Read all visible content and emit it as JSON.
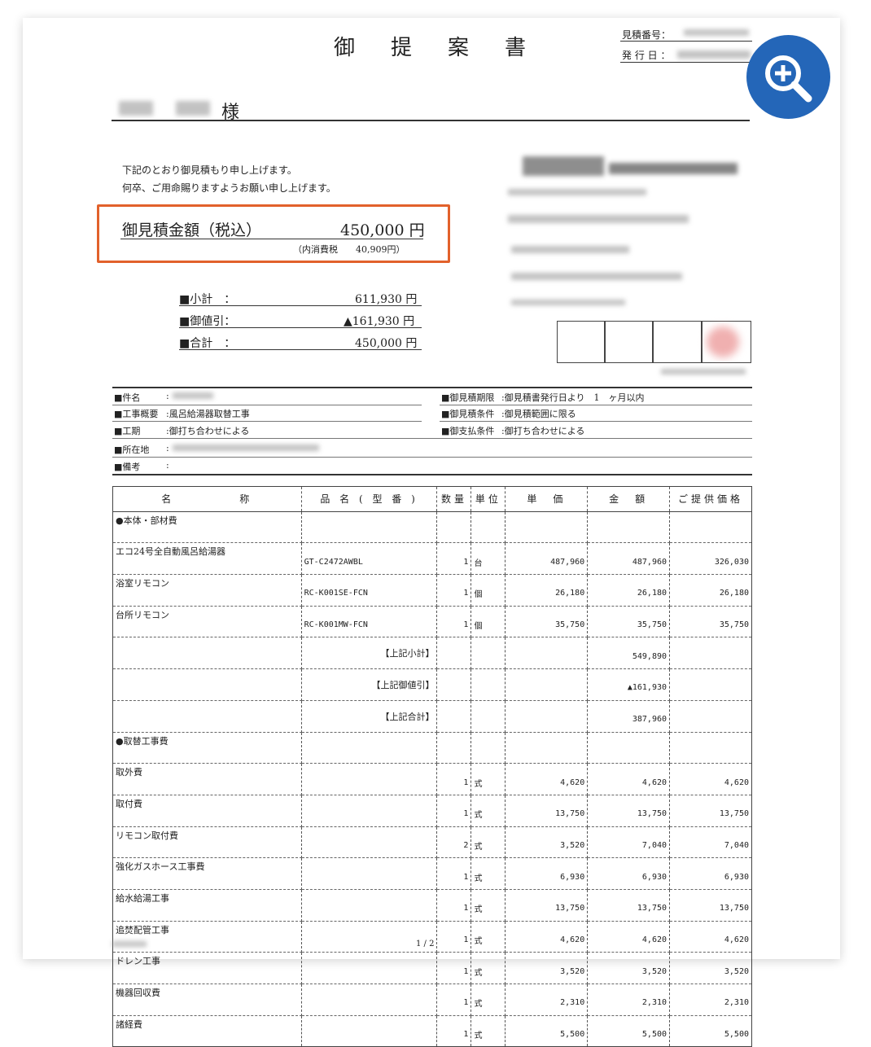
{
  "doc": {
    "title": "御提案書",
    "estimate_no_label": "見積番号：",
    "issue_date_label": "発 行 日 ：",
    "recipient_suffix": "様",
    "greeting1": "下記のとおり御見積もり申し上げます。",
    "greeting2": "何卒、ご用命賜りますようお願い申し上げます。",
    "total_label": "御見積金額（税込）",
    "total_value": "450,000 円",
    "tax_note": "（内消費税　　40,909円）",
    "subtotal_label": "■小計　：",
    "subtotal_value": "611,930 円",
    "discount_label": "■御値引：",
    "discount_value": "▲161,930 円",
    "grand_label": "■合計　：",
    "grand_value": "450,000 円",
    "info_left": [
      {
        "label": "■件名",
        "value": ":"
      },
      {
        "label": "■工事概要",
        "value": ":風呂給湯器取替工事"
      },
      {
        "label": "■工期",
        "value": ":御打ち合わせによる"
      },
      {
        "label": "■所在地",
        "value": ":"
      },
      {
        "label": "■備考",
        "value": ":"
      }
    ],
    "info_right": [
      {
        "label": "■御見積期限",
        "value": ":御見積書発行日より　1　ヶ月以内"
      },
      {
        "label": "■御見積条件",
        "value": ":御見積範囲に限る"
      },
      {
        "label": "■御支払条件",
        "value": ":御打ち合わせによる"
      }
    ],
    "page_no": "1 / 2"
  },
  "table": {
    "headers": [
      "名　　　　　称",
      "品 名 ( 型 番 )",
      "数量",
      "単位",
      "単　価",
      "金　額",
      "ご提供価格"
    ],
    "rows": [
      [
        "●本体・部材費",
        "",
        "",
        "",
        "",
        "",
        ""
      ],
      [
        "エコ24号全自動風呂給湯器",
        "GT-C2472AWBL",
        "1",
        "台",
        "487,960",
        "487,960",
        "326,030"
      ],
      [
        "浴室リモコン",
        "RC-K001SE-FCN",
        "1",
        "個",
        "26,180",
        "26,180",
        "26,180"
      ],
      [
        "台所リモコン",
        "RC-K001MW-FCN",
        "1",
        "個",
        "35,750",
        "35,750",
        "35,750"
      ],
      [
        "",
        "【上記小計】",
        "",
        "",
        "",
        "549,890",
        ""
      ],
      [
        "",
        "【上記御値引】",
        "",
        "",
        "",
        "▲161,930",
        ""
      ],
      [
        "",
        "【上記合計】",
        "",
        "",
        "",
        "387,960",
        ""
      ],
      [
        "●取替工事費",
        "",
        "",
        "",
        "",
        "",
        ""
      ],
      [
        "取外費",
        "",
        "1",
        "式",
        "4,620",
        "4,620",
        "4,620"
      ],
      [
        "取付費",
        "",
        "1",
        "式",
        "13,750",
        "13,750",
        "13,750"
      ],
      [
        "リモコン取付費",
        "",
        "2",
        "式",
        "3,520",
        "7,040",
        "7,040"
      ],
      [
        "強化ガスホース工事費",
        "",
        "1",
        "式",
        "6,930",
        "6,930",
        "6,930"
      ],
      [
        "給水給湯工事",
        "",
        "1",
        "式",
        "13,750",
        "13,750",
        "13,750"
      ],
      [
        "追焚配管工事",
        "",
        "1",
        "式",
        "4,620",
        "4,620",
        "4,620"
      ],
      [
        "ドレン工事",
        "",
        "1",
        "式",
        "3,520",
        "3,520",
        "3,520"
      ],
      [
        "機器回収費",
        "",
        "1",
        "式",
        "2,310",
        "2,310",
        "2,310"
      ],
      [
        "諸経費",
        "",
        "1",
        "式",
        "5,500",
        "5,500",
        "5,500"
      ]
    ]
  },
  "colors": {
    "highlight": "#e2612b",
    "zoom_button": "#2466b8"
  },
  "icons": {
    "zoom": "zoom-in-icon"
  }
}
